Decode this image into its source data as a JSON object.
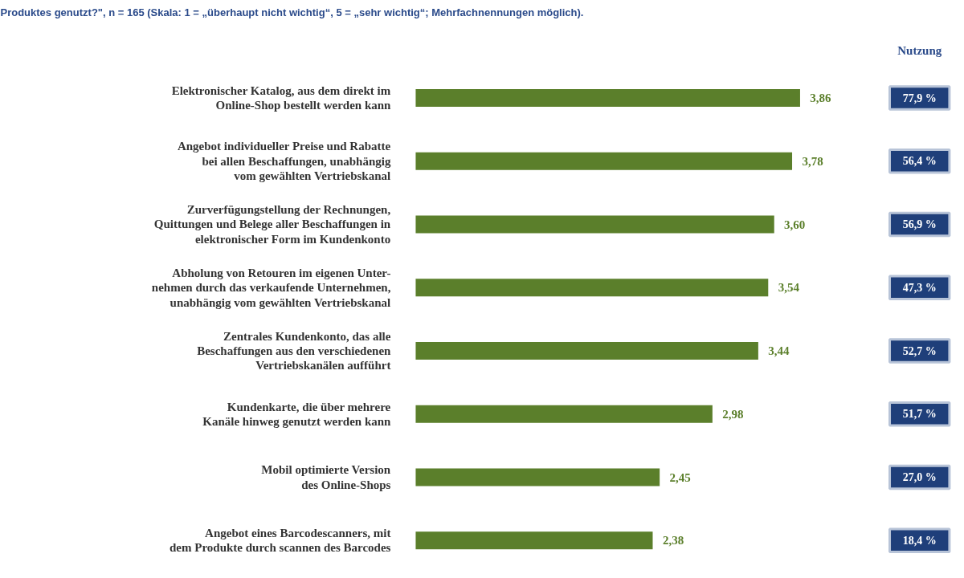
{
  "chart_data": {
    "type": "bar",
    "orientation": "horizontal",
    "subtitle": "Produktes genutzt?\", n = 165 (Skala: 1 = „überhaupt nicht wichtig“, 5 = „sehr wichtig“; Mehrfachnennungen möglich).",
    "categories": [
      "Elektronischer Katalog, aus dem direkt im\nOnline-Shop bestellt werden kann",
      "Angebot individueller Preise und Rabatte\nbei allen Beschaffungen, unabhängig\nvom gewählten Vertriebskanal",
      "Zurverfügungstellung der Rechnungen,\nQuittungen und Belege aller Beschaffungen in\nelektronischer Form im Kundenkonto",
      "Abholung von Retouren im eigenen Unter-\nnehmen durch das verkaufende Unternehmen,\nunabhängig vom gewählten Vertriebskanal",
      "Zentrales Kundenkonto, das alle\nBeschaffungen aus den verschiedenen\nVertriebskanälen aufführt",
      "Kundenkarte, die über mehrere\nKanäle hinweg genutzt werden kann",
      "Mobil optimierte Version\ndes Online-Shops",
      "Angebot eines Barcodescanners, mit\ndem Produkte durch scannen des Barcodes"
    ],
    "values": [
      3.86,
      3.78,
      3.6,
      3.54,
      3.44,
      2.98,
      2.45,
      2.38
    ],
    "value_labels": [
      "3,86",
      "3,78",
      "3,60",
      "3,54",
      "3,44",
      "2,98",
      "2,45",
      "2,38"
    ],
    "color": "#5b7f2b",
    "annotations": [
      "Nutzung",
      "77,9 %",
      "56,4 %",
      "56,9 %",
      "47,3 %",
      "52,7 %",
      "51,7 %",
      "27,0 %",
      "18,4 %"
    ]
  }
}
